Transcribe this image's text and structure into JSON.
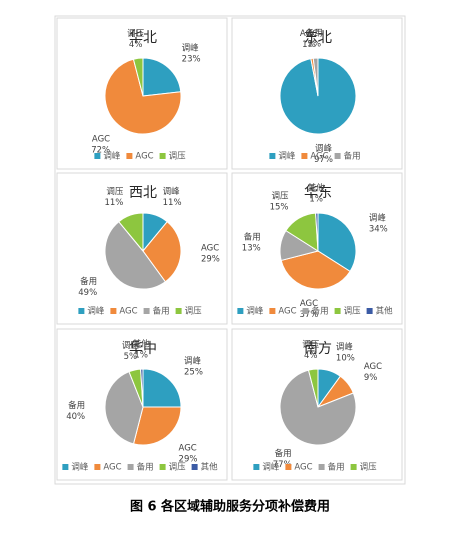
{
  "chart_data": [
    {
      "type": "pie",
      "title": "华北",
      "categories": [
        "调峰",
        "AGC",
        "调压"
      ],
      "values": [
        23,
        72,
        4
      ],
      "value_labels": [
        "23%",
        "72%",
        "4%"
      ],
      "colors": [
        "#2e9fc0",
        "#f08a3c",
        "#8dc63f"
      ]
    },
    {
      "type": "pie",
      "title": "东北",
      "categories": [
        "调峰",
        "AGC",
        "备用"
      ],
      "values": [
        97,
        1,
        2
      ],
      "value_labels": [
        "97%",
        "1%",
        "2%"
      ],
      "colors": [
        "#2e9fc0",
        "#f08a3c",
        "#a5a5a5"
      ]
    },
    {
      "type": "pie",
      "title": "西北",
      "categories": [
        "调峰",
        "AGC",
        "备用",
        "调压"
      ],
      "values": [
        11,
        29,
        49,
        11
      ],
      "value_labels": [
        "11%",
        "29%",
        "49%",
        "11%"
      ],
      "colors": [
        "#2e9fc0",
        "#f08a3c",
        "#a5a5a5",
        "#8dc63f"
      ]
    },
    {
      "type": "pie",
      "title": "华东",
      "categories": [
        "调峰",
        "AGC",
        "备用",
        "调压",
        "其他"
      ],
      "values": [
        34,
        37,
        13,
        15,
        1
      ],
      "value_labels": [
        "34%",
        "37%",
        "13%",
        "15%",
        "1%"
      ],
      "colors": [
        "#2e9fc0",
        "#f08a3c",
        "#a5a5a5",
        "#8dc63f",
        "#3b5ba5"
      ]
    },
    {
      "type": "pie",
      "title": "华中",
      "categories": [
        "调峰",
        "AGC",
        "备用",
        "调压",
        "其他"
      ],
      "values": [
        25,
        29,
        40,
        5,
        1
      ],
      "value_labels": [
        "25%",
        "29%",
        "40%",
        "5%",
        "1%"
      ],
      "colors": [
        "#2e9fc0",
        "#f08a3c",
        "#a5a5a5",
        "#8dc63f",
        "#3b5ba5"
      ]
    },
    {
      "type": "pie",
      "title": "南方",
      "categories": [
        "调峰",
        "AGC",
        "备用",
        "调压"
      ],
      "values": [
        10,
        9,
        77,
        4
      ],
      "value_labels": [
        "10%",
        "9%",
        "77%",
        "4%"
      ],
      "colors": [
        "#2e9fc0",
        "#f08a3c",
        "#a5a5a5",
        "#8dc63f"
      ]
    }
  ],
  "caption": "图 6 各区域辅助服务分项补偿费用"
}
